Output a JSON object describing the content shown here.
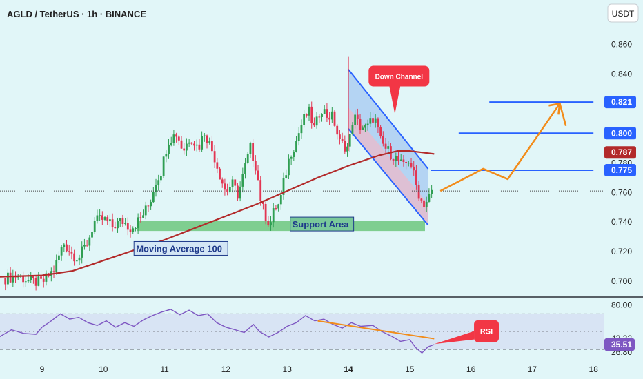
{
  "header": {
    "title": "AGLD / TetherUS · 1h · BINANCE",
    "currency": "USDT"
  },
  "colors": {
    "background": "#e1f6f8",
    "candle_up": "#2f9e52",
    "candle_down": "#e23552",
    "moving_average": "#b22a2a",
    "support_fill": "#5dc06e",
    "channel_line": "#2962ff",
    "channel_fill": "#90b8ef",
    "channel_inner_fill": "#f0b8c6",
    "projection": "#f28c1a",
    "rsi_line": "#7e57c2",
    "callout": "#f23645",
    "price_line": "#444444"
  },
  "chart_data": [
    {
      "type": "candlestick",
      "symbol": "AGLD / TetherUS",
      "interval": "1h",
      "exchange": "BINANCE",
      "x_ticks": [
        "9",
        "10",
        "11",
        "12",
        "13",
        "14",
        "15",
        "16",
        "17",
        "18"
      ],
      "y_ticks": [
        "0.700",
        "0.720",
        "0.740",
        "0.760",
        "0.780",
        "0.800",
        "0.820",
        "0.840",
        "0.860"
      ],
      "ylim": [
        0.6945,
        0.876
      ],
      "grid": false,
      "price_tags": [
        {
          "label": "0.821",
          "value": 0.821,
          "color": "#2962ff"
        },
        {
          "label": "0.800",
          "value": 0.8,
          "color": "#2962ff"
        },
        {
          "label": "0.787",
          "value": 0.787,
          "color": "#b22a2a"
        },
        {
          "label": "0.775",
          "value": 0.775,
          "color": "#2962ff"
        }
      ],
      "last_price": 0.761,
      "close_path": [
        [
          8.4,
          0.702
        ],
        [
          8.6,
          0.704
        ],
        [
          8.8,
          0.7
        ],
        [
          9.0,
          0.699
        ],
        [
          9.2,
          0.708
        ],
        [
          9.35,
          0.726
        ],
        [
          9.5,
          0.718
        ],
        [
          9.6,
          0.716
        ],
        [
          9.75,
          0.727
        ],
        [
          9.85,
          0.74
        ],
        [
          10.0,
          0.742
        ],
        [
          10.15,
          0.737
        ],
        [
          10.3,
          0.741
        ],
        [
          10.45,
          0.736
        ],
        [
          10.6,
          0.742
        ],
        [
          10.75,
          0.752
        ],
        [
          10.85,
          0.767
        ],
        [
          10.95,
          0.775
        ],
        [
          11.05,
          0.795
        ],
        [
          11.2,
          0.8
        ],
        [
          11.3,
          0.788
        ],
        [
          11.42,
          0.798
        ],
        [
          11.55,
          0.79
        ],
        [
          11.65,
          0.801
        ],
        [
          11.8,
          0.786
        ],
        [
          11.9,
          0.772
        ],
        [
          12.0,
          0.76
        ],
        [
          12.1,
          0.766
        ],
        [
          12.2,
          0.758
        ],
        [
          12.3,
          0.775
        ],
        [
          12.4,
          0.79
        ],
        [
          12.5,
          0.776
        ],
        [
          12.58,
          0.752
        ],
        [
          12.65,
          0.744
        ],
        [
          12.72,
          0.738
        ],
        [
          12.8,
          0.75
        ],
        [
          12.88,
          0.752
        ],
        [
          12.95,
          0.768
        ],
        [
          13.05,
          0.786
        ],
        [
          13.15,
          0.795
        ],
        [
          13.25,
          0.808
        ],
        [
          13.35,
          0.815
        ],
        [
          13.45,
          0.802
        ],
        [
          13.55,
          0.818
        ],
        [
          13.65,
          0.812
        ],
        [
          13.75,
          0.811
        ],
        [
          13.85,
          0.794
        ],
        [
          14.0,
          0.79
        ],
        [
          14.08,
          0.812
        ],
        [
          14.18,
          0.805
        ],
        [
          14.3,
          0.803
        ],
        [
          14.42,
          0.812
        ],
        [
          14.52,
          0.795
        ],
        [
          14.6,
          0.79
        ],
        [
          14.7,
          0.786
        ],
        [
          14.8,
          0.782
        ],
        [
          14.9,
          0.777
        ],
        [
          15.0,
          0.783
        ],
        [
          15.1,
          0.766
        ],
        [
          15.18,
          0.755
        ],
        [
          15.25,
          0.752
        ],
        [
          15.3,
          0.756
        ],
        [
          15.38,
          0.761
        ]
      ],
      "moving_average": {
        "label": "Moving Average 100",
        "points": [
          [
            8.3,
            0.703
          ],
          [
            9.0,
            0.704
          ],
          [
            9.5,
            0.707
          ],
          [
            10.0,
            0.714
          ],
          [
            10.5,
            0.721
          ],
          [
            11.0,
            0.728
          ],
          [
            11.5,
            0.736
          ],
          [
            12.0,
            0.744
          ],
          [
            12.5,
            0.752
          ],
          [
            13.0,
            0.761
          ],
          [
            13.5,
            0.77
          ],
          [
            14.0,
            0.778
          ],
          [
            14.5,
            0.785
          ],
          [
            14.8,
            0.788
          ],
          [
            15.0,
            0.788
          ],
          [
            15.2,
            0.787
          ],
          [
            15.4,
            0.786
          ]
        ]
      },
      "support_area": {
        "label": "Support Area",
        "from": 10.55,
        "to": 15.25,
        "low": 0.734,
        "high": 0.741
      },
      "horizontal_levels": [
        {
          "value": 0.821,
          "from": 16.3,
          "to": 18.0
        },
        {
          "value": 0.8,
          "from": 15.8,
          "to": 18.0
        },
        {
          "value": 0.775,
          "from": 15.35,
          "to": 18.0
        }
      ],
      "down_channel": {
        "label": "Down Channel",
        "upper": [
          [
            14.0,
            0.843
          ],
          [
            15.3,
            0.776
          ]
        ],
        "lower": [
          [
            14.0,
            0.803
          ],
          [
            15.3,
            0.738
          ]
        ]
      },
      "projection_path": [
        [
          15.5,
          0.761
        ],
        [
          16.2,
          0.776
        ],
        [
          16.6,
          0.769
        ],
        [
          17.45,
          0.82
        ],
        [
          17.55,
          0.805
        ]
      ]
    },
    {
      "type": "line",
      "name": "RSI",
      "x_ticks": [
        "9",
        "10",
        "11",
        "12",
        "13",
        "14",
        "15",
        "16",
        "17",
        "18"
      ],
      "y_ticks": [
        "80.00",
        "42.32",
        "35.51",
        "26.80"
      ],
      "ylim": [
        20,
        85
      ],
      "bands": [
        70,
        30
      ],
      "last_value": 35.51,
      "points": [
        [
          8.3,
          44
        ],
        [
          8.5,
          52
        ],
        [
          8.7,
          48
        ],
        [
          8.9,
          47
        ],
        [
          9.0,
          55
        ],
        [
          9.15,
          62
        ],
        [
          9.3,
          70
        ],
        [
          9.45,
          64
        ],
        [
          9.6,
          66
        ],
        [
          9.75,
          60
        ],
        [
          9.9,
          57
        ],
        [
          10.05,
          62
        ],
        [
          10.2,
          55
        ],
        [
          10.35,
          60
        ],
        [
          10.5,
          56
        ],
        [
          10.65,
          63
        ],
        [
          10.8,
          68
        ],
        [
          10.95,
          72
        ],
        [
          11.1,
          75
        ],
        [
          11.25,
          69
        ],
        [
          11.4,
          74
        ],
        [
          11.55,
          68
        ],
        [
          11.7,
          70
        ],
        [
          11.85,
          60
        ],
        [
          12.0,
          55
        ],
        [
          12.15,
          52
        ],
        [
          12.3,
          49
        ],
        [
          12.45,
          58
        ],
        [
          12.55,
          50
        ],
        [
          12.7,
          44
        ],
        [
          12.85,
          49
        ],
        [
          13.0,
          56
        ],
        [
          13.15,
          60
        ],
        [
          13.3,
          68
        ],
        [
          13.45,
          62
        ],
        [
          13.6,
          64
        ],
        [
          13.75,
          58
        ],
        [
          13.9,
          54
        ],
        [
          14.05,
          60
        ],
        [
          14.2,
          56
        ],
        [
          14.4,
          57
        ],
        [
          14.55,
          50
        ],
        [
          14.7,
          45
        ],
        [
          14.85,
          39
        ],
        [
          15.0,
          41
        ],
        [
          15.1,
          32
        ],
        [
          15.2,
          26
        ],
        [
          15.3,
          33
        ],
        [
          15.4,
          35.5
        ]
      ],
      "divergence_line": [
        [
          13.5,
          62
        ],
        [
          15.4,
          42
        ]
      ],
      "callout": "RSI"
    }
  ]
}
